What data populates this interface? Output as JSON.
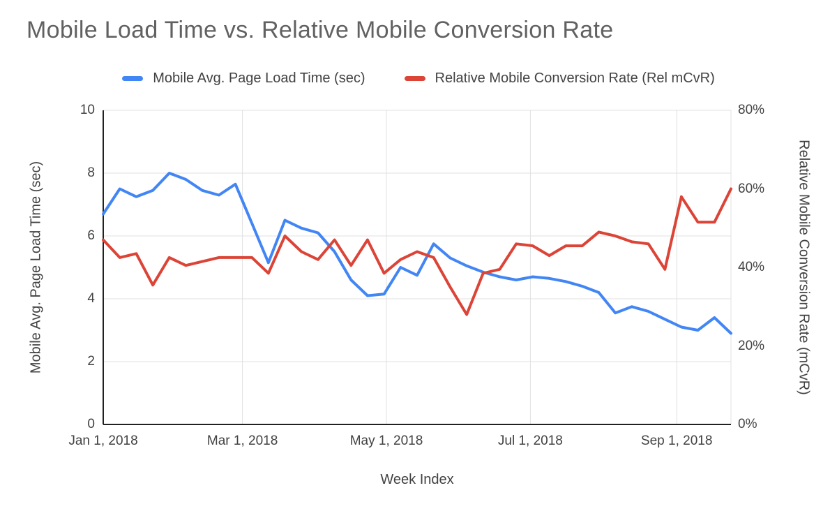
{
  "chart": {
    "title": "Mobile Load Time vs. Relative Mobile Conversion Rate",
    "legend": [
      {
        "label": "Mobile Avg. Page Load Time (sec)",
        "color": "#4285f4"
      },
      {
        "label": "Relative Mobile Conversion Rate (Rel mCvR)",
        "color": "#db4437"
      }
    ]
  },
  "chart_data": {
    "type": "line",
    "title": "Mobile Load Time vs. Relative Mobile Conversion Rate",
    "legend_position": "top",
    "grid": true,
    "grid_color": "#e0e0e0",
    "axis_color": "#212121",
    "x_axis": {
      "title": "Week Index",
      "tick_labels": [
        "Jan 1, 2018",
        "Mar 1, 2018",
        "May 1, 2018",
        "Jul 1, 2018",
        "Sep 1, 2018"
      ],
      "tick_day_offsets": [
        0,
        59,
        120,
        181,
        243
      ],
      "total_days": 266
    },
    "y_axis_left": {
      "title": "Mobile Avg. Page Load Time (sec)",
      "tick_labels": [
        "0",
        "2",
        "4",
        "6",
        "8",
        "10"
      ],
      "tick_values": [
        0,
        2,
        4,
        6,
        8,
        10
      ],
      "range": [
        0,
        10
      ]
    },
    "y_axis_right": {
      "title": "Relative Mobile Conversion Rate (mCvR)",
      "tick_labels": [
        "0%",
        "20%",
        "40%",
        "60%",
        "80%"
      ],
      "tick_values": [
        0,
        20,
        40,
        60,
        80
      ],
      "range": [
        0,
        80
      ]
    },
    "series": [
      {
        "name": "Mobile Avg. Page Load Time (sec)",
        "axis": "left",
        "color": "#4285f4",
        "unit": "sec",
        "values": [
          6.7,
          7.5,
          7.25,
          7.45,
          8.0,
          7.8,
          7.45,
          7.3,
          7.65,
          6.4,
          5.15,
          6.5,
          6.25,
          6.1,
          5.5,
          4.6,
          4.1,
          4.15,
          5.0,
          4.75,
          5.75,
          5.3,
          5.05,
          4.85,
          4.7,
          4.6,
          4.7,
          4.65,
          4.55,
          4.4,
          4.2,
          3.55,
          3.75,
          3.6,
          3.35,
          3.1,
          3.0,
          3.4,
          2.9
        ]
      },
      {
        "name": "Relative Mobile Conversion Rate (Rel mCvR)",
        "axis": "right",
        "color": "#db4437",
        "unit": "%",
        "values": [
          47,
          42.5,
          43.5,
          35.5,
          42.5,
          40.5,
          41.5,
          42.5,
          42.5,
          42.5,
          38.5,
          48,
          44,
          42,
          47,
          40.5,
          47,
          38.5,
          42,
          44,
          42.5,
          35,
          28,
          38.5,
          39.5,
          46,
          45.5,
          43,
          45.5,
          45.5,
          49,
          48,
          46.5,
          46,
          39.5,
          58,
          51.5,
          51.5,
          60
        ]
      }
    ]
  }
}
